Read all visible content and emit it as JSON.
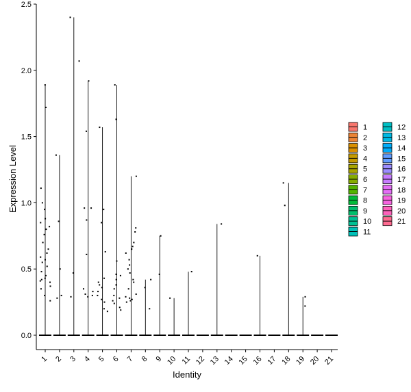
{
  "chart_data": {
    "type": "violin",
    "title": "",
    "xlabel": "Identity",
    "ylabel": "Expression Level",
    "ylim": [
      0,
      2.5
    ],
    "yticks": [
      0.0,
      0.5,
      1.0,
      1.5,
      2.0,
      2.5
    ],
    "ytick_labels": [
      "0.0",
      "0.5",
      "1.0",
      "1.5",
      "2.0",
      "2.5"
    ],
    "categories": [
      "1",
      "2",
      "3",
      "4",
      "5",
      "6",
      "7",
      "8",
      "9",
      "10",
      "11",
      "12",
      "13",
      "14",
      "15",
      "16",
      "17",
      "18",
      "19",
      "20",
      "21"
    ],
    "x_tick_rotation": "45 degrees",
    "grid": false,
    "legend": {
      "placement": "right",
      "columns": 2,
      "entries": [
        {
          "label": "1",
          "color": "#F8766D"
        },
        {
          "label": "2",
          "color": "#EB8335"
        },
        {
          "label": "3",
          "color": "#DA8F00"
        },
        {
          "label": "4",
          "color": "#C49A00"
        },
        {
          "label": "5",
          "color": "#A9A400"
        },
        {
          "label": "6",
          "color": "#86AC00"
        },
        {
          "label": "7",
          "color": "#53B400"
        },
        {
          "label": "8",
          "color": "#00BA38"
        },
        {
          "label": "9",
          "color": "#00BE6C"
        },
        {
          "label": "10",
          "color": "#00C094"
        },
        {
          "label": "11",
          "color": "#00C0B8"
        },
        {
          "label": "12",
          "color": "#00BFC4"
        },
        {
          "label": "13",
          "color": "#00B9E3"
        },
        {
          "label": "14",
          "color": "#00ADFA"
        },
        {
          "label": "15",
          "color": "#619CFF"
        },
        {
          "label": "16",
          "color": "#9C8DFF"
        },
        {
          "label": "17",
          "color": "#C77CFF"
        },
        {
          "label": "18",
          "color": "#E46EF6"
        },
        {
          "label": "19",
          "color": "#F763E0"
        },
        {
          "label": "20",
          "color": "#FF62BC"
        },
        {
          "label": "21",
          "color": "#FF6C91"
        }
      ]
    },
    "series": [
      {
        "category": "1",
        "max": 1.89,
        "points": [
          1.89,
          1.72,
          1.11,
          1.0,
          0.95,
          0.88,
          0.85,
          0.82,
          0.8,
          0.76,
          0.7,
          0.65,
          0.62,
          0.59,
          0.57,
          0.55,
          0.52,
          0.48,
          0.45,
          0.43,
          0.42,
          0.41,
          0.4,
          0.37,
          0.35,
          0.3,
          0.26
        ]
      },
      {
        "category": "2",
        "max": 1.36,
        "points": [
          1.36,
          0.86,
          0.5,
          0.3,
          0.28
        ]
      },
      {
        "category": "3",
        "max": 2.4,
        "points": [
          2.4,
          2.07,
          0.47,
          0.29
        ]
      },
      {
        "category": "4",
        "max": 1.92,
        "points": [
          1.92,
          1.54,
          0.96,
          0.96,
          0.87,
          0.61,
          0.35,
          0.33,
          0.31,
          0.3,
          0.29
        ]
      },
      {
        "category": "5",
        "max": 1.57,
        "points": [
          1.57,
          0.95,
          0.85,
          0.63,
          0.43,
          0.4,
          0.38,
          0.36,
          0.33,
          0.3,
          0.27,
          0.25,
          0.2,
          0.18
        ]
      },
      {
        "category": "6",
        "max": 1.89,
        "points": [
          1.89,
          1.63,
          0.56,
          0.46,
          0.45,
          0.42,
          0.38,
          0.35,
          0.3,
          0.28,
          0.26,
          0.24,
          0.21,
          0.19
        ]
      },
      {
        "category": "7",
        "max": 1.2,
        "points": [
          1.2,
          0.81,
          0.78,
          0.7,
          0.67,
          0.65,
          0.62,
          0.57,
          0.53,
          0.5,
          0.47,
          0.42,
          0.4,
          0.35,
          0.31,
          0.29,
          0.28,
          0.27,
          0.26,
          0.25
        ]
      },
      {
        "category": "8",
        "max": 0.42,
        "points": [
          0.42,
          0.36,
          0.2
        ]
      },
      {
        "category": "9",
        "max": 0.75,
        "points": [
          0.75,
          0.46
        ]
      },
      {
        "category": "10",
        "max": 0.28,
        "points": [
          0.28
        ]
      },
      {
        "category": "11",
        "max": 0.48,
        "points": [
          0.48
        ]
      },
      {
        "category": "12",
        "max": 0.0,
        "points": []
      },
      {
        "category": "13",
        "max": 0.84,
        "points": [
          0.84
        ]
      },
      {
        "category": "14",
        "max": 0.0,
        "points": []
      },
      {
        "category": "15",
        "max": 0.0,
        "points": []
      },
      {
        "category": "16",
        "max": 0.6,
        "points": [
          0.6
        ]
      },
      {
        "category": "17",
        "max": 0.0,
        "points": []
      },
      {
        "category": "18",
        "max": 1.15,
        "points": [
          1.15,
          0.98
        ]
      },
      {
        "category": "19",
        "max": 0.29,
        "points": [
          0.29,
          0.22
        ]
      },
      {
        "category": "20",
        "max": 0.0,
        "points": []
      },
      {
        "category": "21",
        "max": 0.0,
        "points": []
      }
    ]
  }
}
